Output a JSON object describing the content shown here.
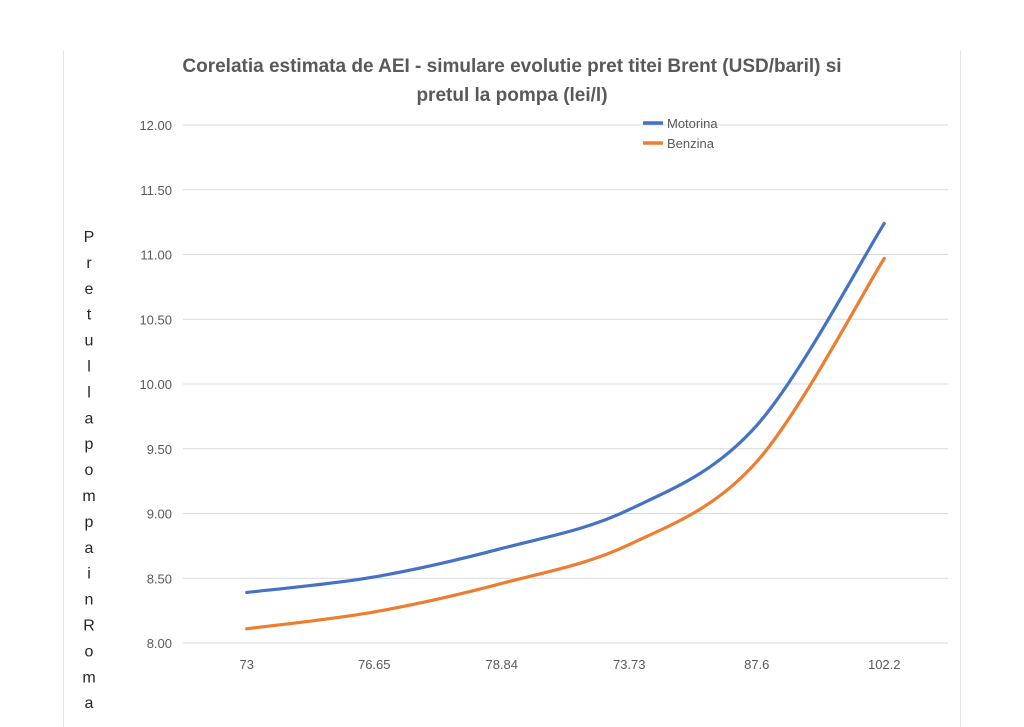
{
  "chart_data": {
    "type": "line",
    "title_lines": [
      "Corelatia estimata de AEI - simulare evolutie pret titei Brent (USD/baril) si",
      "pretul la pompa (lei/l)"
    ],
    "categories": [
      "73",
      "76.65",
      "78.84",
      "73.73",
      "87.6",
      "102.2"
    ],
    "series": [
      {
        "name": "Motorina",
        "color": "#4472c4",
        "values": [
          8.39,
          8.51,
          8.73,
          9.03,
          9.68,
          11.24
        ]
      },
      {
        "name": "Benzina",
        "color": "#ed7d31",
        "values": [
          8.11,
          8.24,
          8.46,
          8.76,
          9.4,
          10.97
        ]
      }
    ],
    "ylim": [
      8.0,
      12.0
    ],
    "yticks": [
      "8.00",
      "8.50",
      "9.00",
      "9.50",
      "10.00",
      "10.50",
      "11.00",
      "11.50",
      "12.00"
    ],
    "ylabel": "Pretul la pompa in Roma",
    "xlabel": "",
    "grid": true,
    "legend_position": "top-right"
  }
}
